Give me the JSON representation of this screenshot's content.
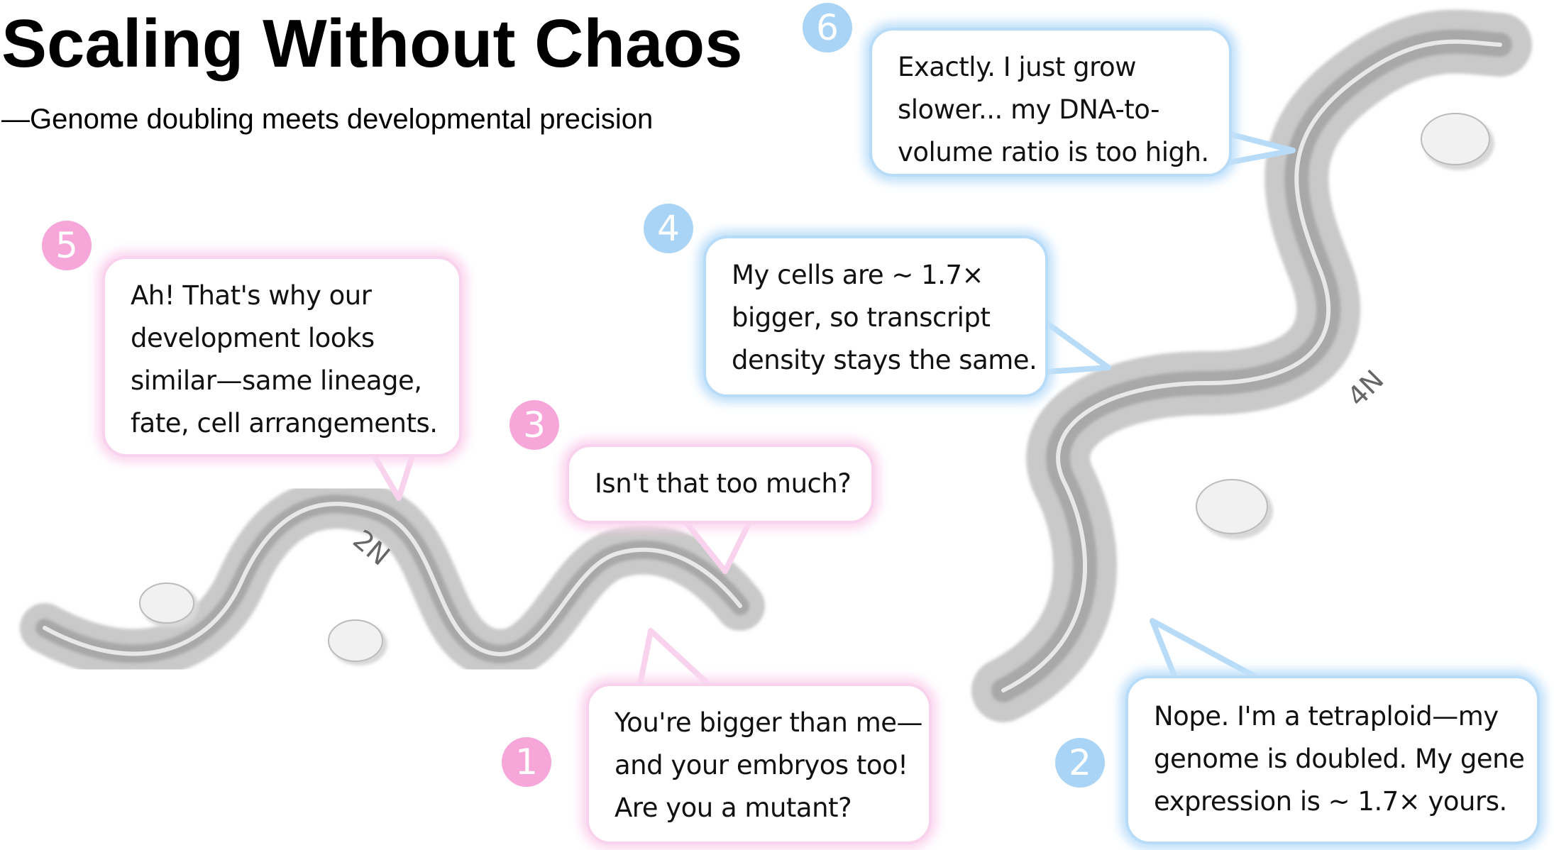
{
  "title": "Scaling Without Chaos",
  "subtitle": "—Genome doubling meets developmental precision",
  "colors": {
    "pink": "#f7a6da",
    "blue": "#aad4f6"
  },
  "worms": [
    {
      "label": "2N"
    },
    {
      "label": "4N"
    }
  ],
  "bubbles": [
    {
      "number": "1",
      "color": "pink",
      "lines": [
        "You're bigger than me—",
        "and your embryos too!",
        "Are you a mutant?"
      ]
    },
    {
      "number": "2",
      "color": "blue",
      "lines": [
        "Nope. I'm a tetraploid—my",
        "genome is doubled. My gene",
        "expression is ~ 1.7× yours."
      ]
    },
    {
      "number": "3",
      "color": "pink",
      "lines": [
        "Isn't that too much?"
      ]
    },
    {
      "number": "4",
      "color": "blue",
      "lines": [
        "My cells are ~ 1.7×",
        "bigger, so transcript",
        "density stays the same."
      ]
    },
    {
      "number": "5",
      "color": "pink",
      "lines": [
        "Ah! That's why our",
        "development looks",
        "similar—same lineage,",
        "fate, cell arrangements."
      ]
    },
    {
      "number": "6",
      "color": "blue",
      "lines": [
        "Exactly. I just grow",
        "slower... my DNA-to-",
        "volume ratio is too high."
      ]
    }
  ]
}
